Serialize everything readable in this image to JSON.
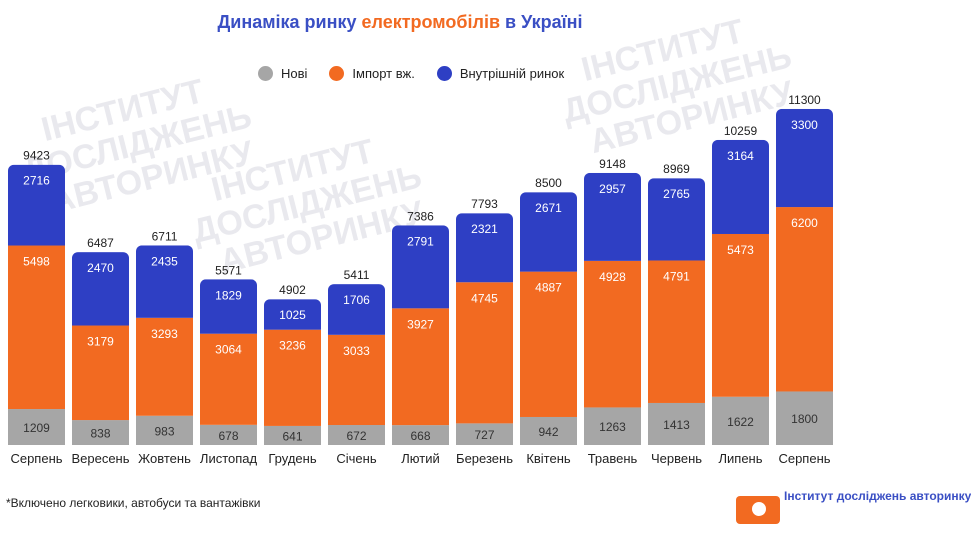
{
  "title": {
    "prefix": "Динаміка ринку ",
    "accent": "електромобілів",
    "suffix": " в Україні"
  },
  "colors": {
    "new": "#a6a6a6",
    "import": "#f26a21",
    "domestic": "#2e3fc4",
    "title": "#3a4fc4"
  },
  "legend": [
    {
      "label": "Нові",
      "color": "#a6a6a6"
    },
    {
      "label": "Імпорт вж.",
      "color": "#f26a21"
    },
    {
      "label": "Внутрішній ринок",
      "color": "#2e3fc4"
    }
  ],
  "footnote": "*Включено легковики, автобуси та вантажівки",
  "logo_text": "Інститут досліджень авторинку",
  "chart_data": {
    "type": "bar",
    "stacked": true,
    "title": "Динаміка ринку електромобілів в Україні",
    "categories": [
      "Серпень",
      "Вересень",
      "Жовтень",
      "Листопад",
      "Грудень",
      "Січень",
      "Лютий",
      "Березень",
      "Квітень",
      "Травень",
      "Червень",
      "Липень",
      "Серпень"
    ],
    "series": [
      {
        "name": "Нові",
        "values": [
          1209,
          838,
          983,
          678,
          641,
          672,
          668,
          727,
          942,
          1263,
          1413,
          1622,
          1800
        ]
      },
      {
        "name": "Імпорт вж.",
        "values": [
          5498,
          3179,
          3293,
          3064,
          3236,
          3033,
          3927,
          4745,
          4887,
          4928,
          4791,
          5473,
          6200
        ]
      },
      {
        "name": "Внутрішній ринок",
        "values": [
          2716,
          2470,
          2435,
          1829,
          1025,
          1706,
          2791,
          2321,
          2671,
          2957,
          2765,
          3164,
          3300
        ]
      }
    ],
    "totals": [
      9423,
      6487,
      6711,
      5571,
      4902,
      5411,
      7386,
      7793,
      8500,
      9148,
      8969,
      10259,
      11300
    ],
    "ylim": [
      0,
      11600
    ],
    "xlabel": "",
    "ylabel": "",
    "legend_position": "top-center"
  }
}
